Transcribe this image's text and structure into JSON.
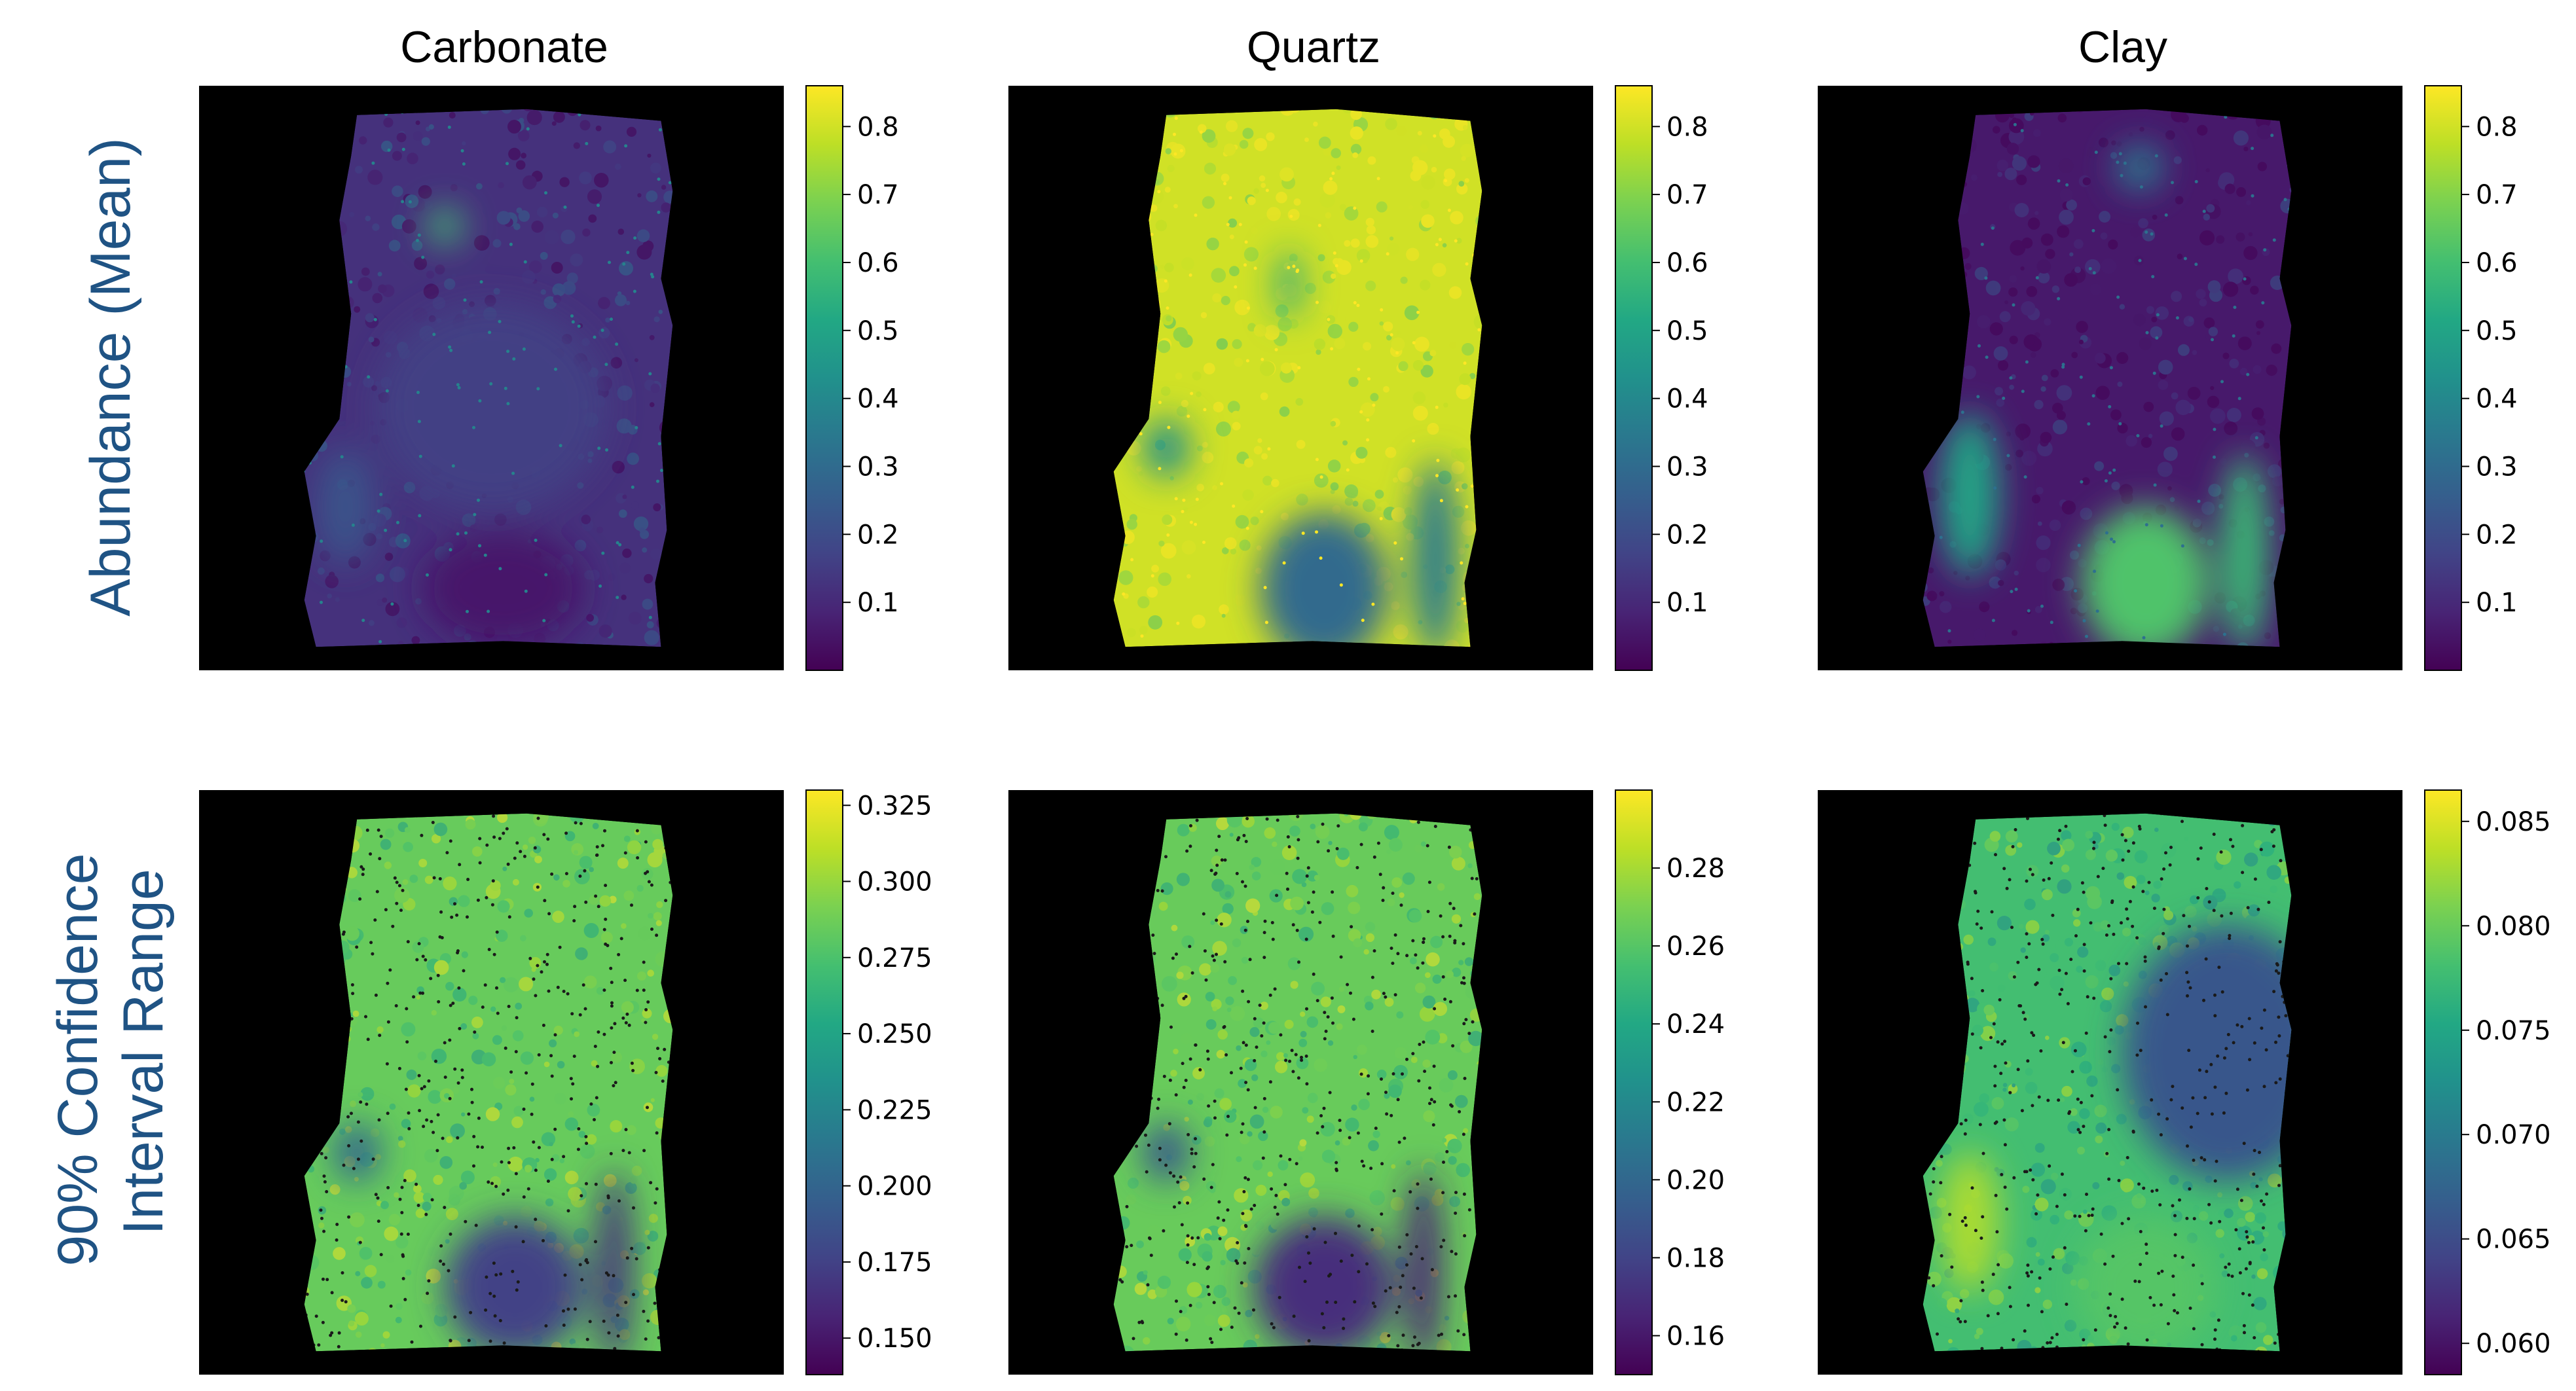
{
  "colors": {
    "background": "#000000",
    "row_label": "#1f5384",
    "viridis": [
      "#440154",
      "#482475",
      "#414487",
      "#355f8d",
      "#2a788e",
      "#21918c",
      "#22a884",
      "#44bf70",
      "#7ad151",
      "#bddf26",
      "#fde725"
    ]
  },
  "columns": [
    "Carbonate",
    "Quartz",
    "Clay"
  ],
  "rows": [
    "Abundance (Mean)",
    "90% Confidence Interval Range"
  ],
  "chart_data": [
    {
      "type": "heatmap",
      "row": "Abundance (Mean)",
      "title": "Carbonate",
      "colormap": "viridis",
      "colorbar_range": [
        0.0,
        0.86
      ],
      "colorbar_ticks": [
        0.1,
        0.2,
        0.3,
        0.4,
        0.5,
        0.6,
        0.7,
        0.8
      ],
      "colorbar_tick_labels": [
        "0.1",
        "0.2",
        "0.3",
        "0.4",
        "0.5",
        "0.6",
        "0.7",
        "0.8"
      ],
      "base_value": 0.12,
      "regions": [
        {
          "cx": 0.42,
          "cy": 0.24,
          "rx": 0.03,
          "ry": 0.03,
          "value": 0.6
        },
        {
          "cx": 0.5,
          "cy": 0.55,
          "rx": 0.2,
          "ry": 0.18,
          "value": 0.16
        },
        {
          "cx": 0.52,
          "cy": 0.86,
          "rx": 0.14,
          "ry": 0.1,
          "value": 0.06
        },
        {
          "cx": 0.25,
          "cy": 0.72,
          "rx": 0.05,
          "ry": 0.1,
          "value": 0.22
        }
      ]
    },
    {
      "type": "heatmap",
      "row": "Abundance (Mean)",
      "title": "Quartz",
      "colormap": "viridis",
      "colorbar_range": [
        0.0,
        0.86
      ],
      "colorbar_ticks": [
        0.1,
        0.2,
        0.3,
        0.4,
        0.5,
        0.6,
        0.7,
        0.8
      ],
      "colorbar_tick_labels": [
        "0.1",
        "0.2",
        "0.3",
        "0.4",
        "0.5",
        "0.6",
        "0.7",
        "0.8"
      ],
      "base_value": 0.8,
      "regions": [
        {
          "cx": 0.54,
          "cy": 0.86,
          "rx": 0.11,
          "ry": 0.13,
          "value": 0.3
        },
        {
          "cx": 0.73,
          "cy": 0.81,
          "rx": 0.04,
          "ry": 0.17,
          "value": 0.35
        },
        {
          "cx": 0.27,
          "cy": 0.62,
          "rx": 0.04,
          "ry": 0.05,
          "value": 0.42
        },
        {
          "cx": 0.48,
          "cy": 0.34,
          "rx": 0.02,
          "ry": 0.06,
          "value": 0.5
        }
      ]
    },
    {
      "type": "heatmap",
      "row": "Abundance (Mean)",
      "title": "Clay",
      "colormap": "viridis",
      "colorbar_range": [
        0.0,
        0.86
      ],
      "colorbar_ticks": [
        0.1,
        0.2,
        0.3,
        0.4,
        0.5,
        0.6,
        0.7,
        0.8
      ],
      "colorbar_tick_labels": [
        "0.1",
        "0.2",
        "0.3",
        "0.4",
        "0.5",
        "0.6",
        "0.7",
        "0.8"
      ],
      "base_value": 0.06,
      "regions": [
        {
          "cx": 0.56,
          "cy": 0.85,
          "rx": 0.11,
          "ry": 0.13,
          "value": 0.62
        },
        {
          "cx": 0.73,
          "cy": 0.8,
          "rx": 0.04,
          "ry": 0.17,
          "value": 0.58
        },
        {
          "cx": 0.26,
          "cy": 0.7,
          "rx": 0.05,
          "ry": 0.14,
          "value": 0.5
        },
        {
          "cx": 0.55,
          "cy": 0.14,
          "rx": 0.04,
          "ry": 0.04,
          "value": 0.35
        }
      ]
    },
    {
      "type": "heatmap",
      "row": "90% Confidence Interval Range",
      "title": "Carbonate",
      "colormap": "viridis",
      "colorbar_range": [
        0.138,
        0.33
      ],
      "colorbar_ticks": [
        0.15,
        0.175,
        0.2,
        0.225,
        0.25,
        0.275,
        0.3,
        0.325
      ],
      "colorbar_tick_labels": [
        "0.150",
        "0.175",
        "0.200",
        "0.225",
        "0.250",
        "0.275",
        "0.300",
        "0.325"
      ],
      "base_value": 0.285,
      "regions": [
        {
          "cx": 0.54,
          "cy": 0.85,
          "rx": 0.12,
          "ry": 0.12,
          "value": 0.175
        },
        {
          "cx": 0.71,
          "cy": 0.82,
          "rx": 0.03,
          "ry": 0.17,
          "value": 0.165
        },
        {
          "cx": 0.27,
          "cy": 0.62,
          "rx": 0.04,
          "ry": 0.05,
          "value": 0.2
        }
      ]
    },
    {
      "type": "heatmap",
      "row": "90% Confidence Interval Range",
      "title": "Quartz",
      "colormap": "viridis",
      "colorbar_range": [
        0.15,
        0.3
      ],
      "colorbar_ticks": [
        0.16,
        0.18,
        0.2,
        0.22,
        0.24,
        0.26,
        0.28
      ],
      "colorbar_tick_labels": [
        "0.16",
        "0.18",
        "0.20",
        "0.22",
        "0.24",
        "0.26",
        "0.28"
      ],
      "base_value": 0.265,
      "regions": [
        {
          "cx": 0.54,
          "cy": 0.85,
          "rx": 0.12,
          "ry": 0.12,
          "value": 0.17
        },
        {
          "cx": 0.71,
          "cy": 0.82,
          "rx": 0.03,
          "ry": 0.17,
          "value": 0.165
        },
        {
          "cx": 0.27,
          "cy": 0.62,
          "rx": 0.04,
          "ry": 0.05,
          "value": 0.19
        }
      ]
    },
    {
      "type": "heatmap",
      "row": "90% Confidence Interval Range",
      "title": "Clay",
      "colormap": "viridis",
      "colorbar_range": [
        0.0585,
        0.0865
      ],
      "colorbar_ticks": [
        0.06,
        0.065,
        0.07,
        0.075,
        0.08,
        0.085
      ],
      "colorbar_tick_labels": [
        "0.060",
        "0.065",
        "0.070",
        "0.075",
        "0.080",
        "0.085"
      ],
      "base_value": 0.078,
      "regions": [
        {
          "cx": 0.7,
          "cy": 0.45,
          "rx": 0.18,
          "ry": 0.22,
          "value": 0.066
        },
        {
          "cx": 0.56,
          "cy": 0.85,
          "rx": 0.12,
          "ry": 0.12,
          "value": 0.079
        },
        {
          "cx": 0.26,
          "cy": 0.74,
          "rx": 0.05,
          "ry": 0.12,
          "value": 0.083
        }
      ]
    }
  ]
}
